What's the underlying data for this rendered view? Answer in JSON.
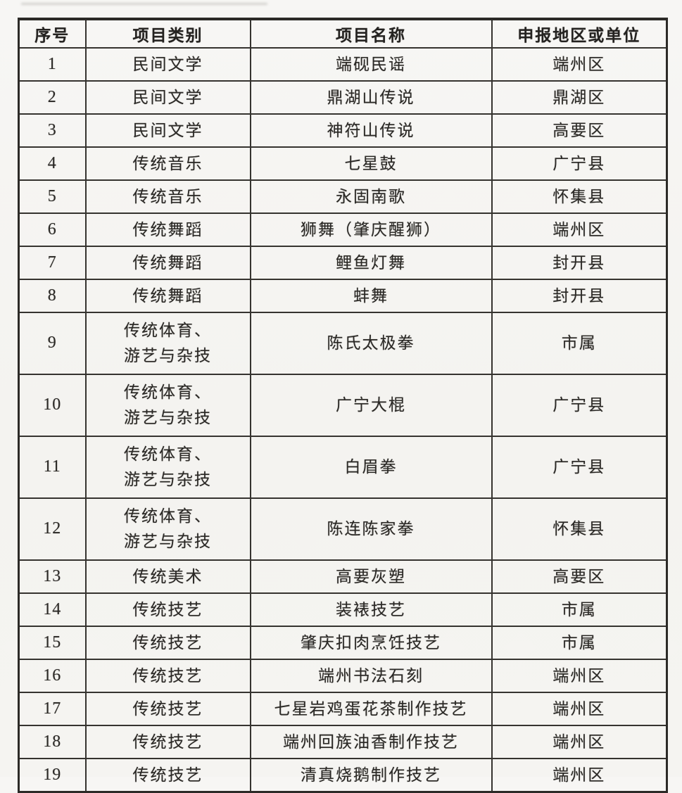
{
  "page": {
    "background_color": "#f5f4f1",
    "border_color": "#2c2a27",
    "text_color": "#2a2825"
  },
  "table": {
    "headers": [
      "序号",
      "项目类别",
      "项目名称",
      "申报地区或单位"
    ],
    "rows": [
      {
        "no": "1",
        "category": "民间文学",
        "name": "端砚民谣",
        "region": "端州区"
      },
      {
        "no": "2",
        "category": "民间文学",
        "name": "鼎湖山传说",
        "region": "鼎湖区"
      },
      {
        "no": "3",
        "category": "民间文学",
        "name": "神符山传说",
        "region": "高要区"
      },
      {
        "no": "4",
        "category": "传统音乐",
        "name": "七星鼓",
        "region": "广宁县"
      },
      {
        "no": "5",
        "category": "传统音乐",
        "name": "永固南歌",
        "region": "怀集县"
      },
      {
        "no": "6",
        "category": "传统舞蹈",
        "name": "狮舞（肇庆醒狮）",
        "region": "端州区"
      },
      {
        "no": "7",
        "category": "传统舞蹈",
        "name": "鲤鱼灯舞",
        "region": "封开县"
      },
      {
        "no": "8",
        "category": "传统舞蹈",
        "name": "蚌舞",
        "region": "封开县"
      },
      {
        "no": "9",
        "category": "传统体育、\n游艺与杂技",
        "name": "陈氏太极拳",
        "region": "市属"
      },
      {
        "no": "10",
        "category": "传统体育、\n游艺与杂技",
        "name": "广宁大棍",
        "region": "广宁县"
      },
      {
        "no": "11",
        "category": "传统体育、\n游艺与杂技",
        "name": "白眉拳",
        "region": "广宁县"
      },
      {
        "no": "12",
        "category": "传统体育、\n游艺与杂技",
        "name": "陈连陈家拳",
        "region": "怀集县"
      },
      {
        "no": "13",
        "category": "传统美术",
        "name": "高要灰塑",
        "region": "高要区"
      },
      {
        "no": "14",
        "category": "传统技艺",
        "name": "装裱技艺",
        "region": "市属"
      },
      {
        "no": "15",
        "category": "传统技艺",
        "name": "肇庆扣肉烹饪技艺",
        "region": "市属"
      },
      {
        "no": "16",
        "category": "传统技艺",
        "name": "端州书法石刻",
        "region": "端州区"
      },
      {
        "no": "17",
        "category": "传统技艺",
        "name": "七星岩鸡蛋花茶制作技艺",
        "region": "端州区"
      },
      {
        "no": "18",
        "category": "传统技艺",
        "name": "端州回族油香制作技艺",
        "region": "端州区"
      },
      {
        "no": "19",
        "category": "传统技艺",
        "name": "清真烧鹅制作技艺",
        "region": "端州区"
      }
    ]
  }
}
